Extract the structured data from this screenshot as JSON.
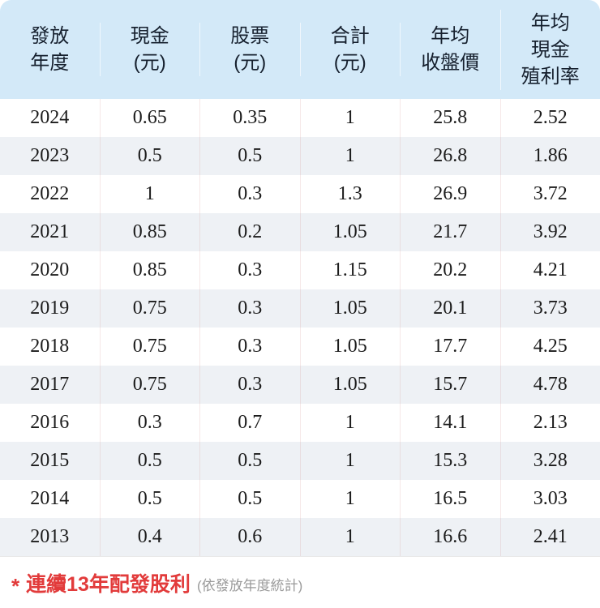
{
  "chart_data": {
    "type": "table",
    "title": "",
    "columns": [
      {
        "id": "payout-year",
        "label": "發放年度",
        "label_lines": [
          "發放",
          "年度"
        ]
      },
      {
        "id": "cash-dividend",
        "label": "現金(元)",
        "label_lines": [
          "現金",
          "(元)"
        ]
      },
      {
        "id": "stock-dividend",
        "label": "股票(元)",
        "label_lines": [
          "股票",
          "(元)"
        ]
      },
      {
        "id": "total-dividend",
        "label": "合計(元)",
        "label_lines": [
          "合計",
          "(元)"
        ]
      },
      {
        "id": "avg-closing-price",
        "label": "年均收盤價",
        "label_lines": [
          "年均",
          "收盤價"
        ]
      },
      {
        "id": "avg-cash-yield",
        "label": "年均現金殖利率",
        "label_lines": [
          "年均",
          "現金",
          "殖利率"
        ]
      }
    ],
    "rows": [
      [
        "2024",
        "0.65",
        "0.35",
        "1",
        "25.8",
        "2.52"
      ],
      [
        "2023",
        "0.5",
        "0.5",
        "1",
        "26.8",
        "1.86"
      ],
      [
        "2022",
        "1",
        "0.3",
        "1.3",
        "26.9",
        "3.72"
      ],
      [
        "2021",
        "0.85",
        "0.2",
        "1.05",
        "21.7",
        "3.92"
      ],
      [
        "2020",
        "0.85",
        "0.3",
        "1.15",
        "20.2",
        "4.21"
      ],
      [
        "2019",
        "0.75",
        "0.3",
        "1.05",
        "20.1",
        "3.73"
      ],
      [
        "2018",
        "0.75",
        "0.3",
        "1.05",
        "17.7",
        "4.25"
      ],
      [
        "2017",
        "0.75",
        "0.3",
        "1.05",
        "15.7",
        "4.78"
      ],
      [
        "2016",
        "0.3",
        "0.7",
        "1",
        "14.1",
        "2.13"
      ],
      [
        "2015",
        "0.5",
        "0.5",
        "1",
        "15.3",
        "3.28"
      ],
      [
        "2014",
        "0.5",
        "0.5",
        "1",
        "16.5",
        "3.03"
      ],
      [
        "2013",
        "0.4",
        "0.6",
        "1",
        "16.6",
        "2.41"
      ]
    ]
  },
  "footer": {
    "asterisk": "*",
    "note": "連續13年配發股利",
    "note_sub": "(依發放年度統計)"
  },
  "colors": {
    "header_bg": "#d3e9f8",
    "row_alt_bg": "#eef1f5",
    "accent_red": "#e23b3b",
    "text": "#1b1b1b",
    "subtext_gray": "#9a9a9a"
  }
}
